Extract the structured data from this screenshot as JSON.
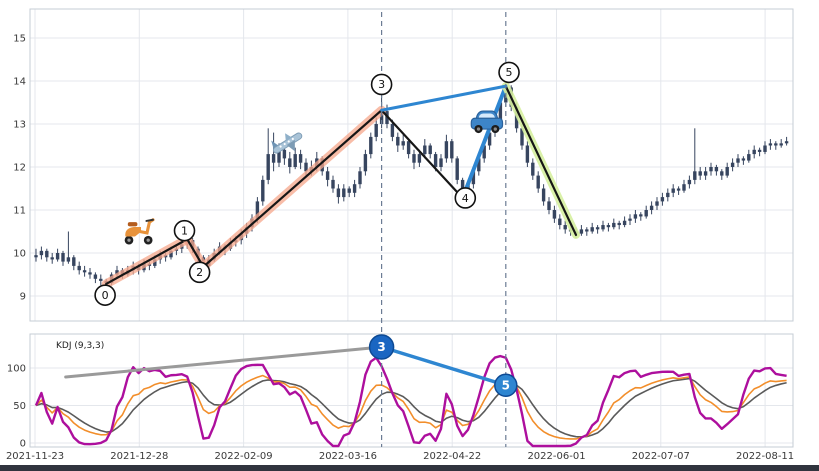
{
  "kdj_label": "KDJ (9,3,3)",
  "colors": {
    "candle": "#37455f",
    "grid": "#e4e7ec",
    "panel_border": "#c6ccd4",
    "axis_text": "#3a3a3a",
    "dashed_marker": "#6b7c94",
    "wave_line": "#161616",
    "wave_glow_up": "#f6a78c",
    "wave_glow_down": "#d7f0a0",
    "trend_blue": "#2e86d1",
    "kdj_k": "#f28e2b",
    "kdj_d": "#5a5a5a",
    "kdj_j": "#ad0f9d",
    "anno_circle_fill": "#1a66c2",
    "anno_circle_fill2": "#2e86d1"
  },
  "chart_data": {
    "type": "candlestick+kdj",
    "price_axis": {
      "ticks": [
        15,
        14,
        13,
        12,
        11,
        10,
        9
      ],
      "range": [
        8.7,
        15.4
      ]
    },
    "kdj_axis": {
      "ticks": [
        100,
        50,
        0
      ]
    },
    "x_axis": {
      "ticks": [
        "2021-11-23",
        "2021-12-28",
        "2022-02-09",
        "2022-03-16",
        "2022-04-22",
        "2022-06-01",
        "2022-07-07",
        "2022-08-11"
      ]
    },
    "kdj_params": "KDJ (9,3,3)",
    "candles": [
      [
        9.9,
        10.1,
        9.8,
        9.95
      ],
      [
        9.95,
        10.15,
        9.85,
        10.05
      ],
      [
        10.05,
        10.1,
        9.8,
        9.9
      ],
      [
        9.9,
        10.0,
        9.75,
        9.85
      ],
      [
        9.85,
        10.1,
        9.8,
        10.0
      ],
      [
        10.0,
        10.05,
        9.7,
        9.8
      ],
      [
        9.8,
        10.5,
        9.75,
        9.9
      ],
      [
        9.9,
        9.95,
        9.6,
        9.7
      ],
      [
        9.7,
        9.8,
        9.5,
        9.6
      ],
      [
        9.6,
        9.7,
        9.45,
        9.55
      ],
      [
        9.55,
        9.65,
        9.4,
        9.5
      ],
      [
        9.5,
        9.55,
        9.3,
        9.4
      ],
      [
        9.4,
        9.5,
        9.25,
        9.35
      ],
      [
        9.35,
        9.4,
        9.15,
        9.3
      ],
      [
        9.3,
        9.55,
        9.25,
        9.5
      ],
      [
        9.5,
        9.7,
        9.4,
        9.6
      ],
      [
        9.6,
        9.65,
        9.4,
        9.5
      ],
      [
        9.5,
        9.7,
        9.45,
        9.6
      ],
      [
        9.6,
        9.8,
        9.5,
        9.7
      ],
      [
        9.7,
        9.75,
        9.5,
        9.6
      ],
      [
        9.6,
        9.85,
        9.55,
        9.75
      ],
      [
        9.75,
        9.8,
        9.6,
        9.7
      ],
      [
        9.7,
        9.95,
        9.65,
        9.85
      ],
      [
        9.85,
        10.05,
        9.75,
        9.95
      ],
      [
        9.95,
        10.0,
        9.8,
        9.9
      ],
      [
        9.9,
        10.15,
        9.85,
        10.05
      ],
      [
        10.05,
        10.2,
        9.95,
        10.1
      ],
      [
        10.1,
        10.3,
        10.0,
        10.2
      ],
      [
        10.2,
        10.45,
        10.1,
        10.3
      ],
      [
        10.3,
        10.35,
        10.0,
        10.1
      ],
      [
        10.1,
        10.15,
        9.8,
        9.9
      ],
      [
        9.9,
        9.95,
        9.6,
        9.7
      ],
      [
        9.7,
        9.95,
        9.65,
        9.85
      ],
      [
        9.85,
        10.1,
        9.8,
        10.0
      ],
      [
        10.0,
        10.25,
        9.95,
        10.15
      ],
      [
        10.15,
        10.2,
        9.95,
        10.1
      ],
      [
        10.1,
        10.35,
        10.05,
        10.25
      ],
      [
        10.25,
        10.4,
        10.15,
        10.3
      ],
      [
        10.3,
        10.55,
        10.2,
        10.45
      ],
      [
        10.45,
        10.7,
        10.35,
        10.6
      ],
      [
        10.6,
        10.9,
        10.5,
        10.8
      ],
      [
        10.8,
        11.3,
        10.7,
        11.2
      ],
      [
        11.2,
        11.8,
        11.1,
        11.7
      ],
      [
        11.7,
        12.9,
        11.6,
        12.3
      ],
      [
        12.3,
        12.8,
        11.9,
        12.1
      ],
      [
        12.1,
        12.55,
        12.0,
        12.4
      ],
      [
        12.4,
        12.5,
        12.05,
        12.2
      ],
      [
        12.2,
        12.35,
        11.85,
        12.0
      ],
      [
        12.0,
        12.45,
        11.95,
        12.3
      ],
      [
        12.3,
        12.4,
        11.95,
        12.1
      ],
      [
        12.1,
        12.2,
        11.75,
        11.9
      ],
      [
        11.9,
        12.15,
        11.8,
        12.0
      ],
      [
        12.0,
        12.35,
        11.9,
        12.2
      ],
      [
        12.2,
        12.25,
        11.8,
        11.9
      ],
      [
        11.9,
        12.0,
        11.55,
        11.7
      ],
      [
        11.7,
        11.8,
        11.4,
        11.5
      ],
      [
        11.5,
        11.6,
        11.15,
        11.3
      ],
      [
        11.3,
        11.6,
        11.2,
        11.5
      ],
      [
        11.5,
        11.55,
        11.3,
        11.4
      ],
      [
        11.4,
        11.7,
        11.3,
        11.6
      ],
      [
        11.6,
        12.0,
        11.5,
        11.9
      ],
      [
        11.9,
        12.4,
        11.8,
        12.3
      ],
      [
        12.3,
        12.8,
        12.2,
        12.7
      ],
      [
        12.7,
        13.15,
        12.6,
        13.0
      ],
      [
        13.0,
        13.9,
        12.9,
        13.3
      ],
      [
        13.3,
        13.45,
        12.9,
        13.0
      ],
      [
        13.0,
        13.1,
        12.6,
        12.7
      ],
      [
        12.7,
        12.8,
        12.35,
        12.5
      ],
      [
        12.5,
        12.75,
        12.4,
        12.6
      ],
      [
        12.6,
        12.65,
        12.2,
        12.3
      ],
      [
        12.3,
        12.4,
        11.95,
        12.1
      ],
      [
        12.1,
        12.4,
        12.0,
        12.3
      ],
      [
        12.3,
        12.65,
        12.2,
        12.5
      ],
      [
        12.5,
        12.55,
        12.2,
        12.3
      ],
      [
        12.3,
        12.35,
        11.9,
        12.0
      ],
      [
        12.0,
        12.3,
        11.9,
        12.2
      ],
      [
        12.2,
        12.75,
        12.1,
        12.6
      ],
      [
        12.6,
        12.65,
        12.1,
        12.2
      ],
      [
        12.2,
        12.25,
        11.6,
        11.7
      ],
      [
        11.7,
        11.75,
        11.15,
        11.3
      ],
      [
        11.3,
        11.7,
        11.2,
        11.6
      ],
      [
        11.6,
        12.0,
        11.5,
        11.9
      ],
      [
        11.9,
        12.3,
        11.8,
        12.2
      ],
      [
        12.2,
        12.6,
        12.1,
        12.5
      ],
      [
        12.5,
        12.9,
        12.4,
        12.8
      ],
      [
        12.8,
        13.2,
        12.7,
        13.1
      ],
      [
        13.1,
        13.6,
        13.0,
        13.5
      ],
      [
        13.5,
        14.0,
        13.4,
        13.85
      ],
      [
        13.85,
        13.9,
        13.3,
        13.4
      ],
      [
        13.4,
        13.5,
        12.8,
        12.9
      ],
      [
        12.9,
        13.0,
        12.4,
        12.5
      ],
      [
        12.5,
        12.6,
        12.0,
        12.1
      ],
      [
        12.1,
        12.2,
        11.7,
        11.8
      ],
      [
        11.8,
        11.9,
        11.4,
        11.5
      ],
      [
        11.5,
        11.6,
        11.1,
        11.2
      ],
      [
        11.2,
        11.3,
        10.9,
        11.0
      ],
      [
        11.0,
        11.1,
        10.7,
        10.8
      ],
      [
        10.8,
        10.9,
        10.55,
        10.65
      ],
      [
        10.65,
        10.75,
        10.45,
        10.55
      ],
      [
        10.55,
        10.65,
        10.4,
        10.5
      ],
      [
        10.5,
        10.6,
        10.35,
        10.45
      ],
      [
        10.45,
        10.65,
        10.4,
        10.55
      ],
      [
        10.55,
        10.6,
        10.4,
        10.5
      ],
      [
        10.5,
        10.7,
        10.45,
        10.6
      ],
      [
        10.6,
        10.65,
        10.45,
        10.55
      ],
      [
        10.55,
        10.75,
        10.5,
        10.65
      ],
      [
        10.65,
        10.7,
        10.5,
        10.6
      ],
      [
        10.6,
        10.8,
        10.55,
        10.7
      ],
      [
        10.7,
        10.75,
        10.55,
        10.65
      ],
      [
        10.65,
        10.85,
        10.6,
        10.75
      ],
      [
        10.75,
        10.9,
        10.65,
        10.8
      ],
      [
        10.8,
        11.0,
        10.7,
        10.9
      ],
      [
        10.9,
        10.95,
        10.75,
        10.85
      ],
      [
        10.85,
        11.1,
        10.8,
        11.0
      ],
      [
        11.0,
        11.2,
        10.9,
        11.1
      ],
      [
        11.1,
        11.3,
        11.0,
        11.2
      ],
      [
        11.2,
        11.4,
        11.1,
        11.3
      ],
      [
        11.3,
        11.5,
        11.2,
        11.4
      ],
      [
        11.4,
        11.6,
        11.3,
        11.5
      ],
      [
        11.5,
        11.55,
        11.35,
        11.45
      ],
      [
        11.45,
        11.7,
        11.4,
        11.6
      ],
      [
        11.6,
        11.8,
        11.5,
        11.7
      ],
      [
        11.7,
        12.9,
        11.6,
        11.9
      ],
      [
        11.9,
        12.0,
        11.7,
        11.8
      ],
      [
        11.8,
        12.0,
        11.7,
        11.9
      ],
      [
        11.9,
        12.1,
        11.8,
        12.0
      ],
      [
        12.0,
        12.05,
        11.8,
        11.9
      ],
      [
        11.9,
        11.95,
        11.7,
        11.8
      ],
      [
        11.8,
        12.1,
        11.75,
        12.0
      ],
      [
        12.0,
        12.2,
        11.9,
        12.1
      ],
      [
        12.1,
        12.3,
        12.0,
        12.2
      ],
      [
        12.2,
        12.25,
        12.05,
        12.15
      ],
      [
        12.15,
        12.4,
        12.1,
        12.3
      ],
      [
        12.3,
        12.5,
        12.2,
        12.4
      ],
      [
        12.4,
        12.45,
        12.25,
        12.35
      ],
      [
        12.35,
        12.6,
        12.3,
        12.5
      ],
      [
        12.5,
        12.65,
        12.4,
        12.55
      ],
      [
        12.55,
        12.6,
        12.4,
        12.5
      ],
      [
        12.5,
        12.65,
        12.45,
        12.55
      ],
      [
        12.55,
        12.7,
        12.5,
        12.6
      ]
    ],
    "wave": {
      "vertices": [
        {
          "label": "0",
          "i": 13,
          "price": 9.28
        },
        {
          "label": "1",
          "i": 28,
          "price": 10.32
        },
        {
          "label": "2",
          "i": 31,
          "price": 9.68
        },
        {
          "label": "3",
          "i": 64,
          "price": 13.32
        },
        {
          "label": "4",
          "i": 79,
          "price": 11.28
        },
        {
          "label": "5",
          "i": 87,
          "price": 13.88
        },
        {
          "label": "",
          "i": 100,
          "price": 10.42
        }
      ],
      "segments": [
        {
          "a": 0,
          "b": 1,
          "glow": "up"
        },
        {
          "a": 1,
          "b": 2,
          "glow": "up"
        },
        {
          "a": 2,
          "b": 3,
          "glow": "up"
        },
        {
          "a": 3,
          "b": 4,
          "glow": null
        },
        {
          "a": 4,
          "b": 5,
          "blue": true
        },
        {
          "a": 5,
          "b": 6,
          "glow": "down"
        }
      ],
      "trendline": {
        "a": 3,
        "b": 5
      }
    },
    "price_circles": [
      {
        "label": "0",
        "i": 12.8,
        "price": 9.02
      },
      {
        "label": "1",
        "i": 27.5,
        "price": 10.52
      },
      {
        "label": "2",
        "i": 30.3,
        "price": 9.55
      },
      {
        "label": "3",
        "i": 64.0,
        "price": 13.92
      },
      {
        "label": "4",
        "i": 79.5,
        "price": 11.28
      },
      {
        "label": "5",
        "i": 87.6,
        "price": 14.2
      }
    ],
    "marker_lines": [
      {
        "i": 64
      },
      {
        "i": 87
      }
    ],
    "kdj_annotations": {
      "gray_line": {
        "from": {
          "i": 5.5,
          "v": 88
        },
        "to": {
          "i": 64,
          "v": 128
        }
      },
      "blue_line": {
        "from": {
          "i": 64,
          "v": 128
        },
        "to": {
          "i": 87,
          "v": 77
        }
      },
      "circles": [
        {
          "label": "3",
          "i": 64,
          "v": 128,
          "r": 12
        },
        {
          "label": "5",
          "i": 87,
          "v": 77,
          "r": 11
        }
      ]
    },
    "icons": [
      {
        "name": "scooter-icon",
        "i": 19.0,
        "price": 10.55
      },
      {
        "name": "airplane-icon",
        "i": 46.5,
        "price": 12.55
      },
      {
        "name": "car-icon",
        "i": 83.5,
        "price": 13.05
      }
    ]
  }
}
